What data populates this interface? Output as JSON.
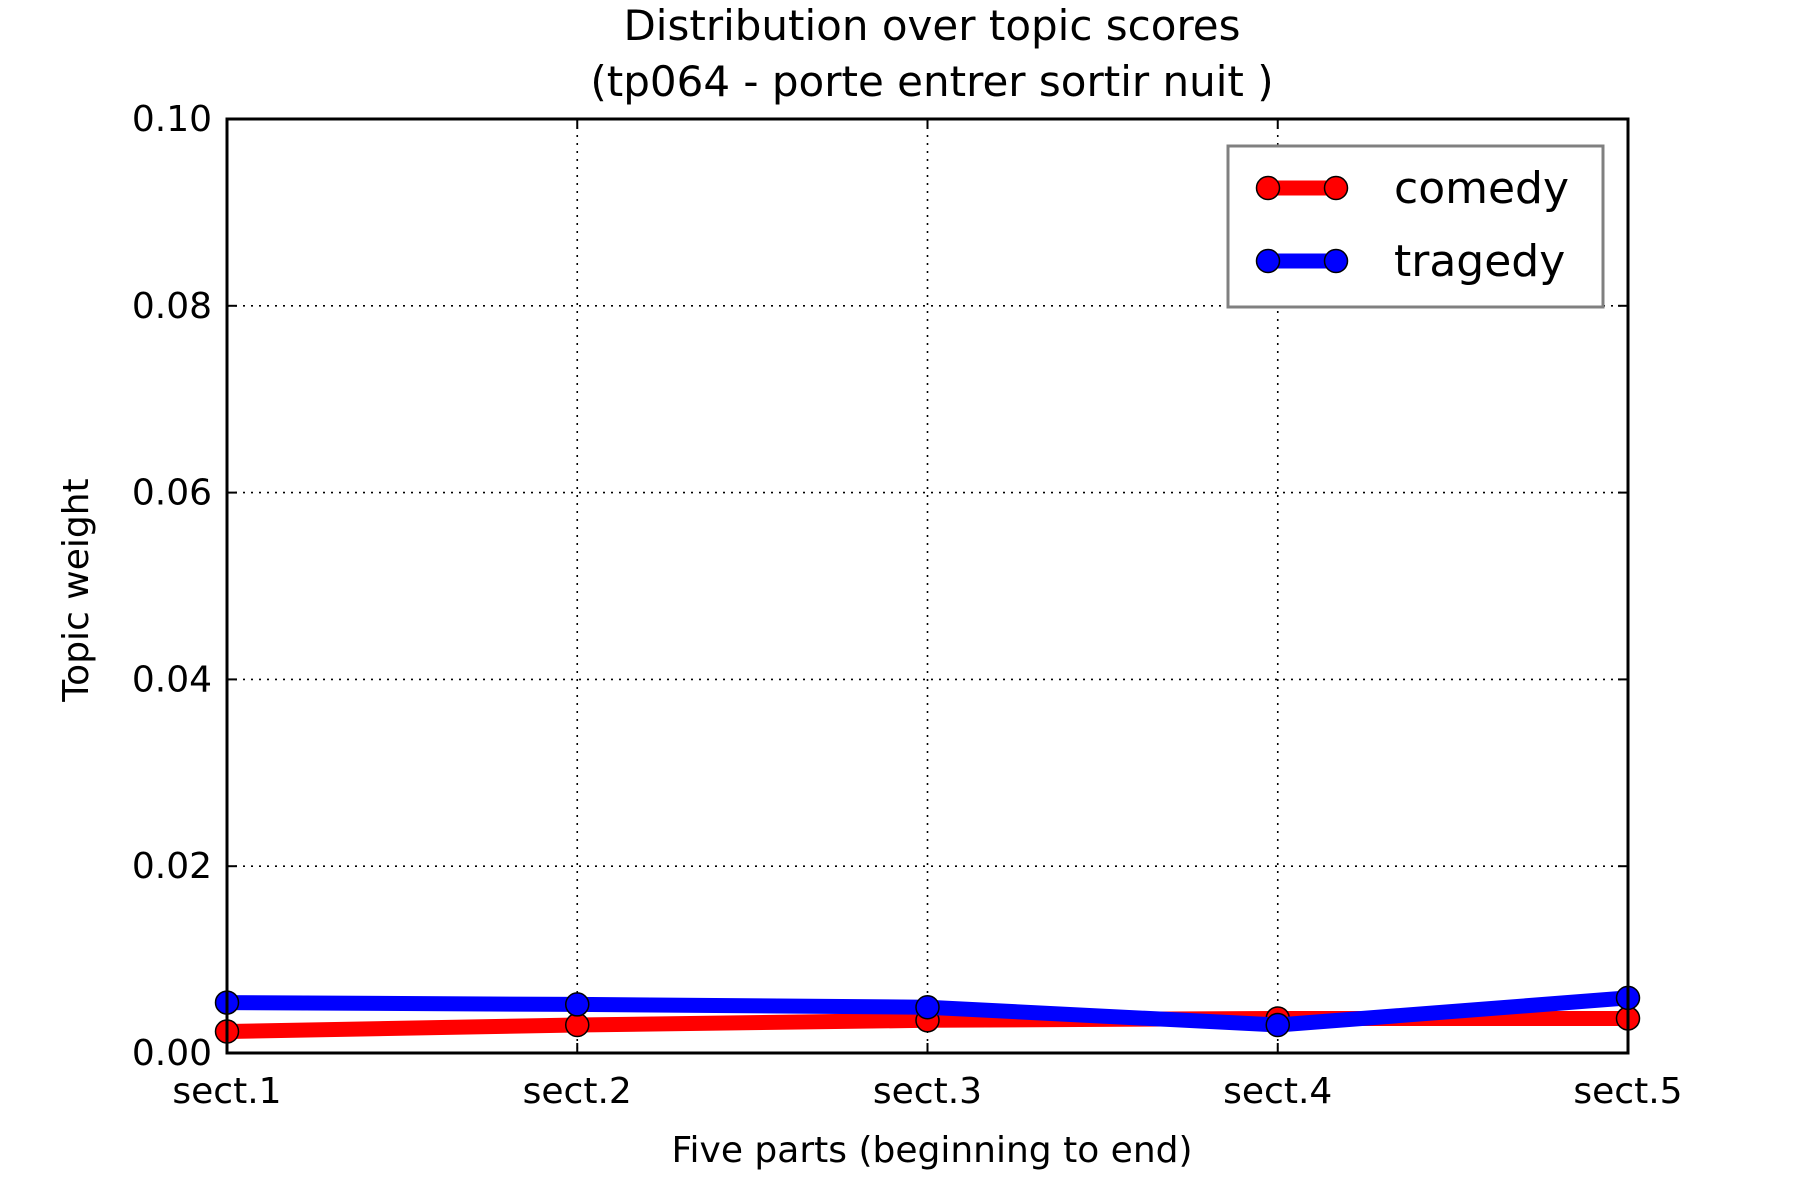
{
  "chart_data": {
    "type": "line",
    "title_line1": "Distribution over topic scores",
    "title_line2": "(tp064 - porte entrer sortir nuit )",
    "xlabel": "Five parts (beginning to end)",
    "ylabel": "Topic weight",
    "categories": [
      "sect.1",
      "sect.2",
      "sect.3",
      "sect.4",
      "sect.5"
    ],
    "ylim": [
      0,
      0.1
    ],
    "yticks": [
      "0.00",
      "0.02",
      "0.04",
      "0.06",
      "0.08",
      "0.10"
    ],
    "grid": true,
    "legend_position": "top-right",
    "series": [
      {
        "name": "comedy",
        "color": "#ff0000",
        "values": [
          0.0023,
          0.003,
          0.0035,
          0.0037,
          0.0037
        ]
      },
      {
        "name": "tragedy",
        "color": "#0000ff",
        "values": [
          0.0054,
          0.0052,
          0.0049,
          0.003,
          0.0059
        ]
      }
    ]
  }
}
